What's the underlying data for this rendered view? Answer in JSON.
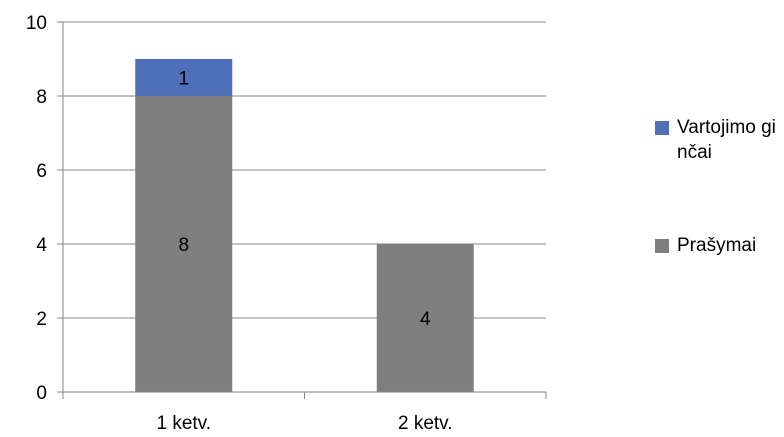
{
  "chart_data": {
    "type": "bar",
    "stacked": true,
    "categories": [
      "1 ketv.",
      "2 ketv."
    ],
    "series": [
      {
        "name": "Prašymai",
        "values": [
          8,
          4
        ],
        "color": "#7f7f7f"
      },
      {
        "name": "Vartojimo ginčai",
        "values": [
          1,
          0
        ],
        "color": "#4f6fb8"
      }
    ],
    "ylim": [
      0,
      10
    ],
    "yticks": [
      0,
      2,
      4,
      6,
      8,
      10
    ],
    "grid": true,
    "legend": "right",
    "legend_order": [
      1,
      0
    ],
    "title": "",
    "xlabel": "",
    "ylabel": ""
  }
}
